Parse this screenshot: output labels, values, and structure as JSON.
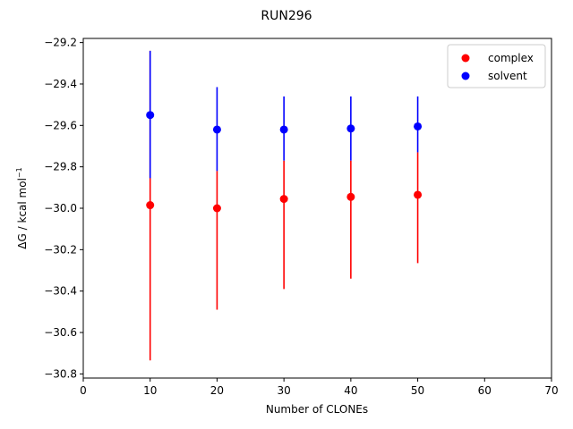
{
  "chart_data": {
    "type": "scatter",
    "title": "RUN296",
    "xlabel": "Number of CLONEs",
    "ylabel_main": "ΔG / kcal mol",
    "ylabel_sup": "−1",
    "xlim": [
      0,
      70
    ],
    "ylim": [
      -30.82,
      -29.18
    ],
    "xticks": [
      0,
      10,
      20,
      30,
      40,
      50,
      60,
      70
    ],
    "xtick_labels": [
      "0",
      "10",
      "20",
      "30",
      "40",
      "50",
      "60",
      "70"
    ],
    "yticks": [
      -30.8,
      -30.6,
      -30.4,
      -30.2,
      -30.0,
      -29.8,
      -29.6,
      -29.4,
      -29.2
    ],
    "ytick_labels": [
      "−30.8",
      "−30.6",
      "−30.4",
      "−30.2",
      "−30.0",
      "−29.8",
      "−29.6",
      "−29.4",
      "−29.2"
    ],
    "legend_position": "top-right",
    "grid": false,
    "series": [
      {
        "name": "complex",
        "color": "#ff0000",
        "points": [
          {
            "x": 10,
            "y": -29.985,
            "ylow": -30.735,
            "yhigh": -29.24
          },
          {
            "x": 20,
            "y": -30.0,
            "ylow": -30.49,
            "yhigh": -29.82
          },
          {
            "x": 30,
            "y": -29.955,
            "ylow": -30.39,
            "yhigh": -29.77
          },
          {
            "x": 40,
            "y": -29.945,
            "ylow": -30.34,
            "yhigh": -29.77
          },
          {
            "x": 50,
            "y": -29.935,
            "ylow": -30.265,
            "yhigh": -29.73
          }
        ]
      },
      {
        "name": "solvent",
        "color": "#0000ff",
        "points": [
          {
            "x": 10,
            "y": -29.55,
            "ylow": -29.855,
            "yhigh": -29.24
          },
          {
            "x": 20,
            "y": -29.62,
            "ylow": -29.82,
            "yhigh": -29.415
          },
          {
            "x": 30,
            "y": -29.62,
            "ylow": -29.77,
            "yhigh": -29.46
          },
          {
            "x": 40,
            "y": -29.615,
            "ylow": -29.77,
            "yhigh": -29.46
          },
          {
            "x": 50,
            "y": -29.605,
            "ylow": -29.73,
            "yhigh": -29.46
          }
        ]
      }
    ]
  }
}
